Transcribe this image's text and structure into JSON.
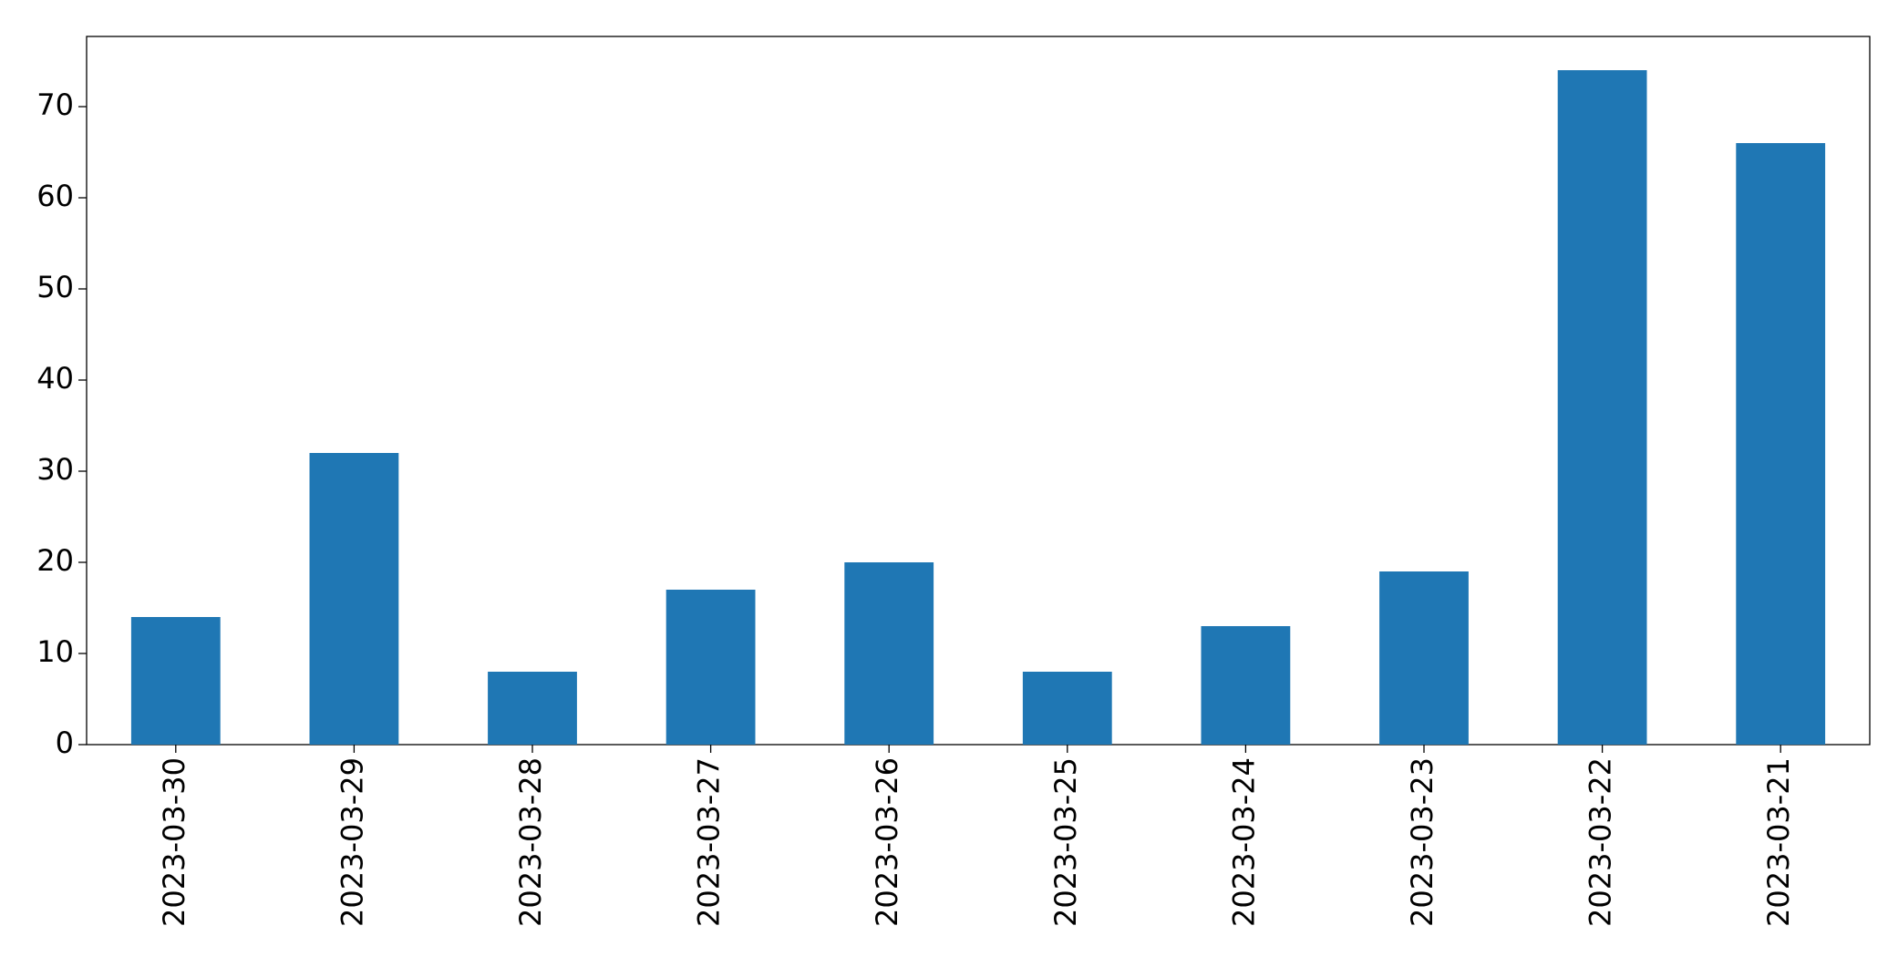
{
  "chart_data": {
    "type": "bar",
    "categories": [
      "2023-03-30",
      "2023-03-29",
      "2023-03-28",
      "2023-03-27",
      "2023-03-26",
      "2023-03-25",
      "2023-03-24",
      "2023-03-23",
      "2023-03-22",
      "2023-03-21"
    ],
    "values": [
      14,
      32,
      8,
      17,
      20,
      8,
      13,
      19,
      74,
      66
    ],
    "color": "#1f77b4",
    "ylim": [
      0,
      77.7
    ],
    "yticks": [
      0,
      10,
      20,
      30,
      40,
      50,
      60,
      70
    ],
    "grid": false
  }
}
